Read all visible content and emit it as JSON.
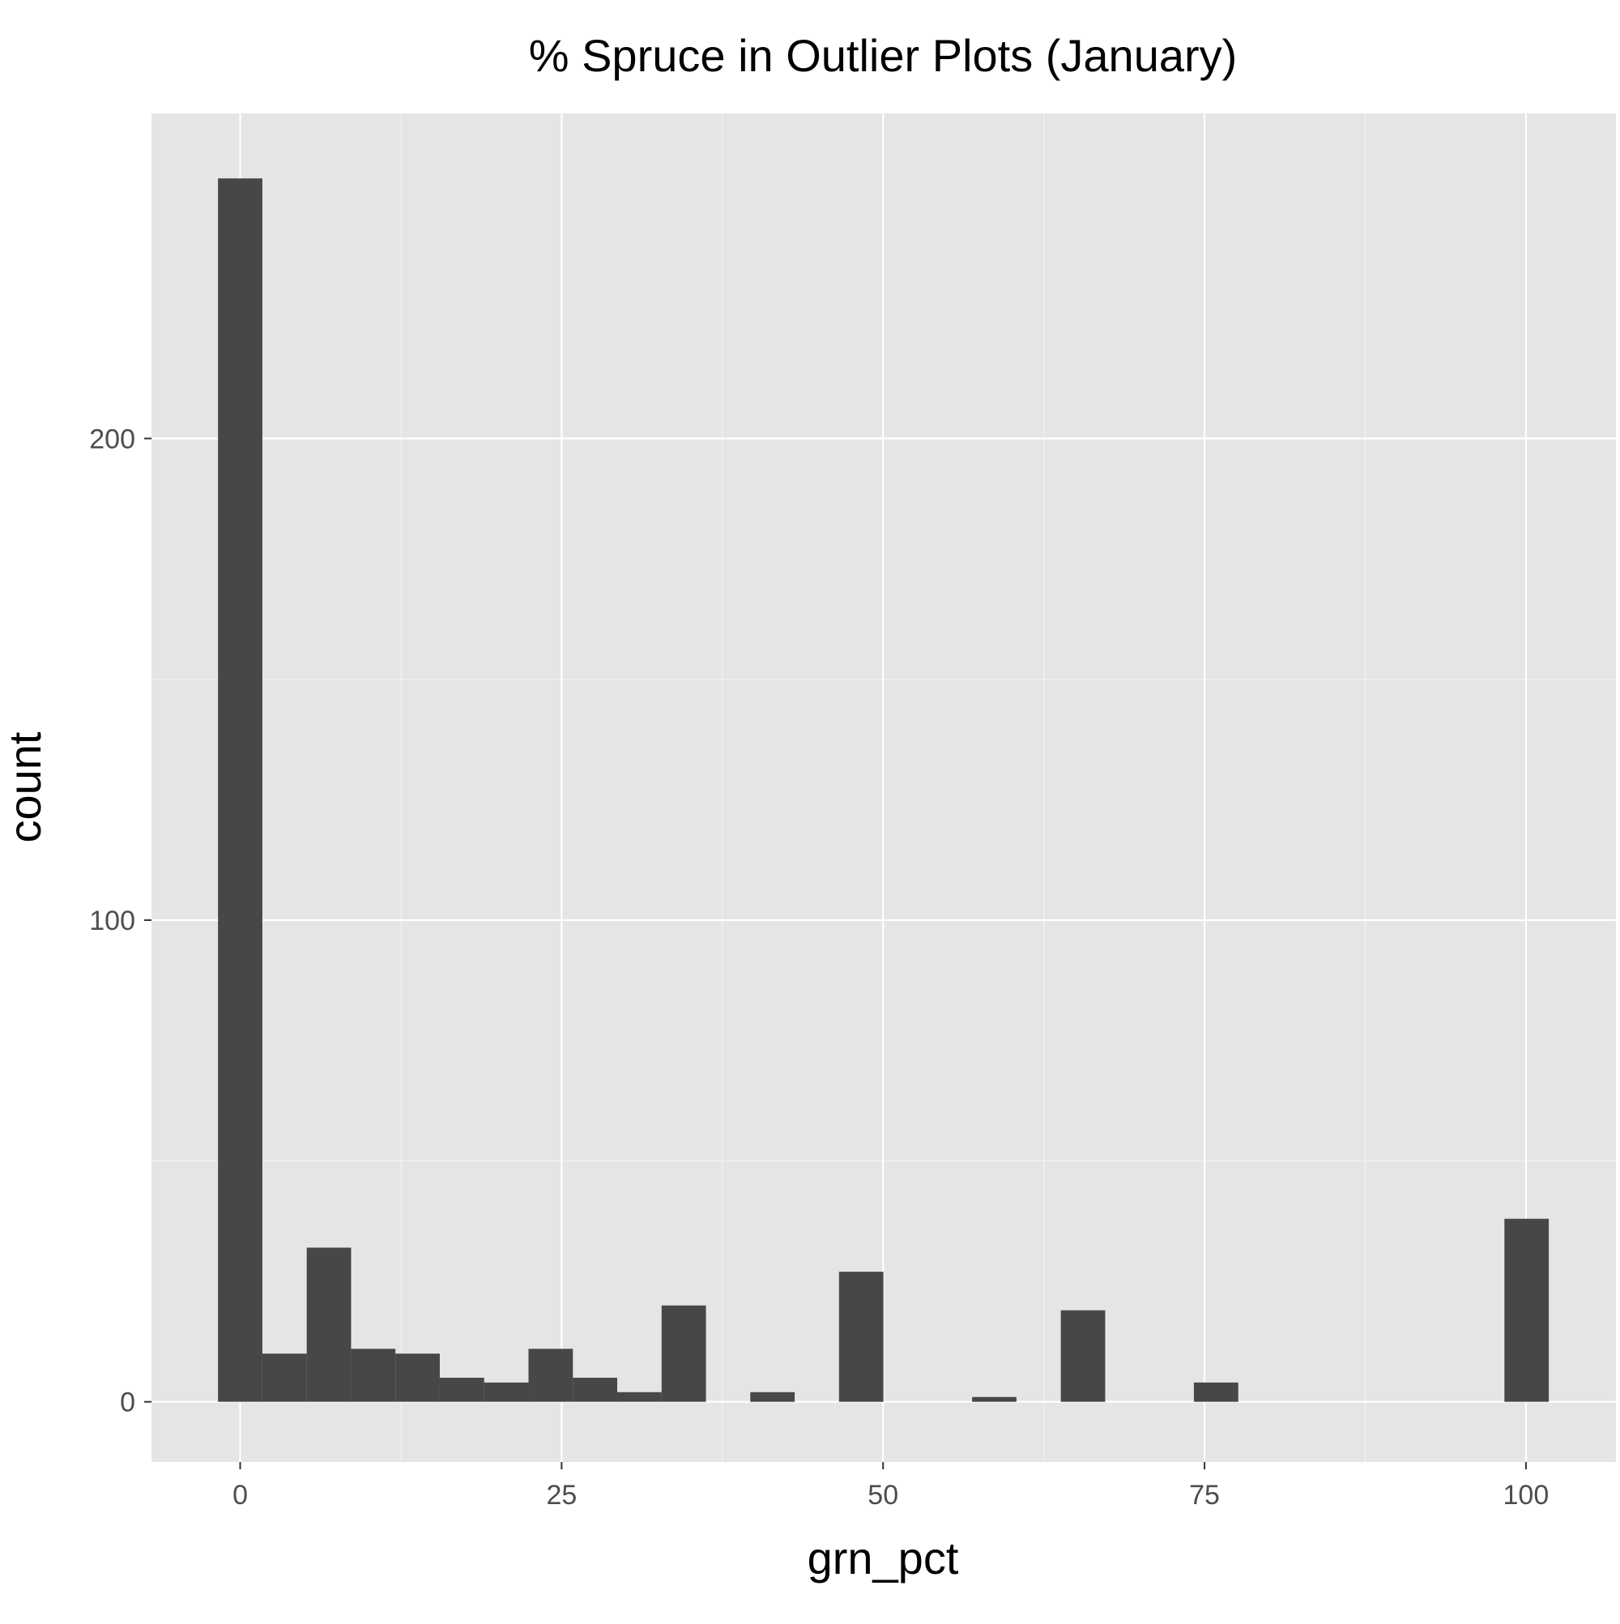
{
  "chart_data": {
    "type": "bar",
    "title": "% Spruce in Outlier Plots (January)",
    "xlabel": "grn_pct",
    "ylabel": "count",
    "xlim": [
      -6.9,
      107
    ],
    "ylim": [
      -12.5,
      267.5
    ],
    "x_ticks": [
      0,
      25,
      50,
      75,
      100
    ],
    "y_ticks": [
      0,
      100,
      200
    ],
    "grid": true,
    "bin_width": 3.45,
    "bins": [
      {
        "center": 0.0,
        "count": 254
      },
      {
        "center": 3.45,
        "count": 10
      },
      {
        "center": 6.9,
        "count": 32
      },
      {
        "center": 10.35,
        "count": 11
      },
      {
        "center": 13.8,
        "count": 10
      },
      {
        "center": 17.25,
        "count": 5
      },
      {
        "center": 20.7,
        "count": 4
      },
      {
        "center": 24.15,
        "count": 11
      },
      {
        "center": 27.6,
        "count": 5
      },
      {
        "center": 31.05,
        "count": 2
      },
      {
        "center": 34.5,
        "count": 20
      },
      {
        "center": 37.95,
        "count": 0
      },
      {
        "center": 41.4,
        "count": 2
      },
      {
        "center": 44.85,
        "count": 0
      },
      {
        "center": 48.3,
        "count": 27
      },
      {
        "center": 51.75,
        "count": 0
      },
      {
        "center": 55.2,
        "count": 0
      },
      {
        "center": 58.65,
        "count": 1
      },
      {
        "center": 62.1,
        "count": 0
      },
      {
        "center": 65.55,
        "count": 19
      },
      {
        "center": 69.0,
        "count": 0
      },
      {
        "center": 72.45,
        "count": 0
      },
      {
        "center": 75.9,
        "count": 4
      },
      {
        "center": 79.35,
        "count": 0
      },
      {
        "center": 82.8,
        "count": 0
      },
      {
        "center": 86.25,
        "count": 0
      },
      {
        "center": 89.7,
        "count": 0
      },
      {
        "center": 93.15,
        "count": 0
      },
      {
        "center": 96.6,
        "count": 0
      },
      {
        "center": 100.05,
        "count": 38
      }
    ],
    "colors": {
      "panel": "#e5e5e5",
      "grid_major": "#ffffff",
      "bar": "#474747",
      "tick": "#333333"
    }
  }
}
